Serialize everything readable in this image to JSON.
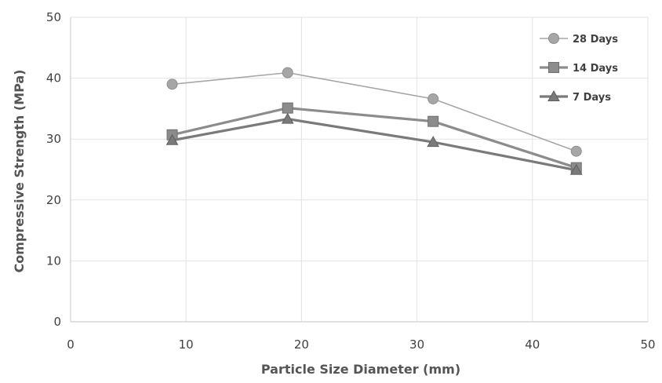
{
  "chart_data": {
    "type": "line",
    "title": "",
    "xlabel": "Particle Size Diameter (mm)",
    "ylabel": "Compressive Strength (MPa)",
    "xlim": [
      0,
      50
    ],
    "ylim": [
      0,
      50
    ],
    "xticks": [
      "0",
      "10",
      "20",
      "30",
      "40",
      "50"
    ],
    "yticks": [
      "0",
      "10",
      "20",
      "30",
      "40",
      "50"
    ],
    "grid": true,
    "legend_position": "top-right",
    "series": [
      {
        "name": "28 Days",
        "marker": "circle",
        "color": "#a6a6a6",
        "x": [
          8.8,
          18.8,
          31.4,
          43.8
        ],
        "y": [
          39.0,
          40.9,
          36.6,
          28.0
        ]
      },
      {
        "name": "14 Days",
        "marker": "square",
        "color": "#8c8c8c",
        "x": [
          8.8,
          18.8,
          31.4,
          43.8
        ],
        "y": [
          30.7,
          35.1,
          32.9,
          25.3
        ]
      },
      {
        "name": "7 Days",
        "marker": "triangle",
        "color": "#7a7a7a",
        "x": [
          8.8,
          18.8,
          31.4,
          43.8
        ],
        "y": [
          29.8,
          33.3,
          29.5,
          24.9
        ]
      }
    ]
  }
}
